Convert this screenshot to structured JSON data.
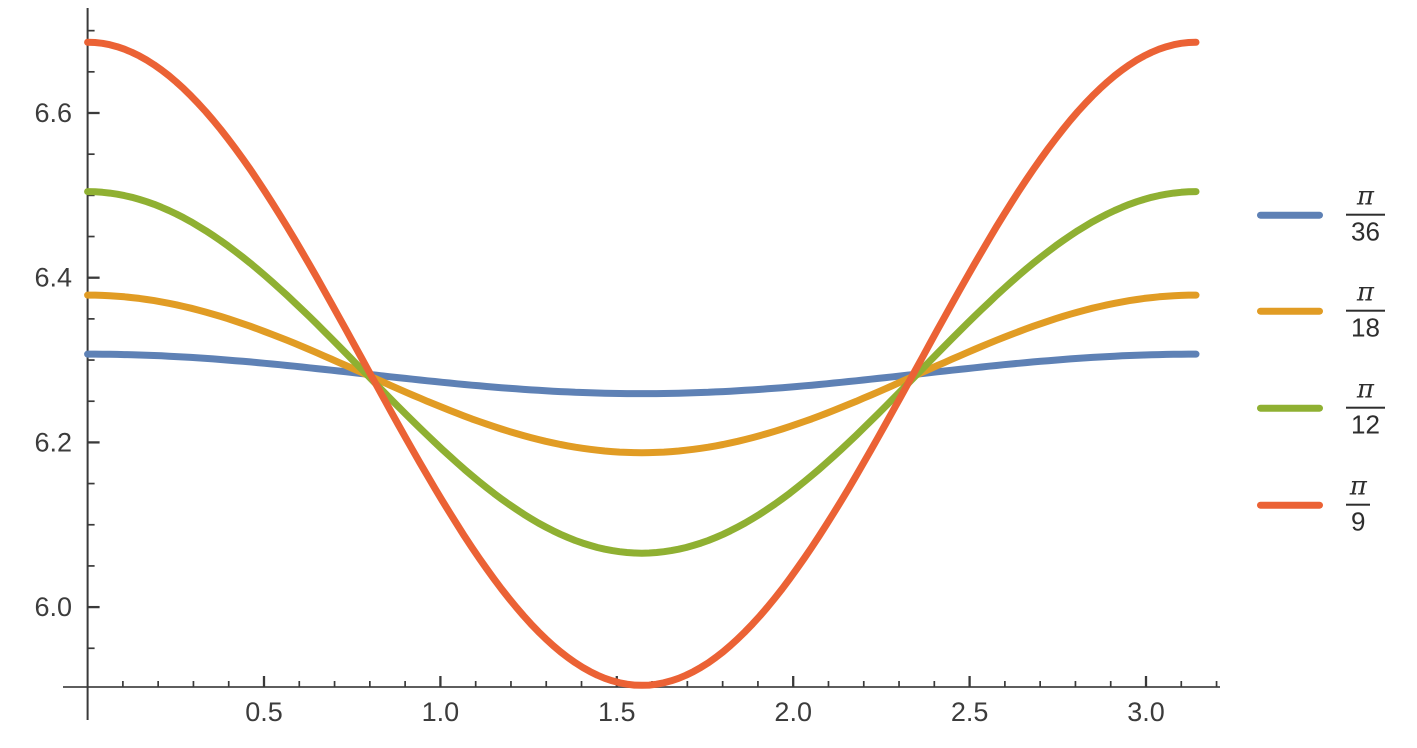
{
  "chart_data": {
    "type": "line",
    "title": "",
    "xlabel": "",
    "ylabel": "",
    "background_color": "#ffffff",
    "axis_color": "#5e5e5e",
    "tick_color": "#3a3a3a",
    "tick_label_color": "#3c3c3c",
    "grid": false,
    "legend_position": "right-outside",
    "x_axis": {
      "range_shown": [
        0,
        3.22
      ],
      "major_ticks": [
        0.5,
        1.0,
        1.5,
        2.0,
        2.5,
        3.0
      ],
      "major_tick_labels": [
        "0.5",
        "1.0",
        "1.5",
        "2.0",
        "2.5",
        "3.0"
      ],
      "minor_tick_start": 0.1,
      "minor_tick_end": 3.2,
      "minor_tick_step": 0.1
    },
    "y_axis": {
      "range_shown": [
        5.9,
        6.73
      ],
      "major_ticks": [
        6.0,
        6.2,
        6.4,
        6.6
      ],
      "major_tick_labels": [
        "6.0",
        "6.2",
        "6.4",
        "6.6"
      ],
      "minor_tick_start": 5.95,
      "minor_tick_end": 6.7,
      "minor_tick_step": 0.05
    },
    "curve_model": "y(x) = mean + amplitude*cos(2x), x in [0, pi]",
    "x_domain": [
      0,
      3.14159
    ],
    "x_samples": [
      0,
      0.3927,
      0.7854,
      1.1781,
      1.5708,
      1.9635,
      2.3562,
      2.7489,
      3.1416
    ],
    "series": [
      {
        "label": "π/36",
        "numerator": "π",
        "denominator": "36",
        "color": "#5E81B5",
        "mean": 6.2832,
        "amplitude": 0.024,
        "y_samples": [
          6.307,
          6.3,
          6.283,
          6.266,
          6.259,
          6.266,
          6.283,
          6.3,
          6.307
        ]
      },
      {
        "label": "π/18",
        "numerator": "π",
        "denominator": "18",
        "color": "#E19C24",
        "mean": 6.2832,
        "amplitude": 0.0957,
        "y_samples": [
          6.379,
          6.351,
          6.283,
          6.216,
          6.188,
          6.216,
          6.283,
          6.351,
          6.379
        ]
      },
      {
        "label": "π/12",
        "numerator": "π",
        "denominator": "12",
        "color": "#8FB032",
        "mean": 6.285,
        "amplitude": 0.2195,
        "y_samples": [
          6.505,
          6.44,
          6.285,
          6.13,
          6.066,
          6.13,
          6.285,
          6.44,
          6.505
        ]
      },
      {
        "label": "π/9",
        "numerator": "π",
        "denominator": "9",
        "color": "#EB6235",
        "mean": 6.2955,
        "amplitude": 0.3905,
        "y_samples": [
          6.686,
          6.572,
          6.296,
          6.019,
          5.905,
          6.019,
          6.296,
          6.572,
          6.686
        ]
      }
    ]
  }
}
